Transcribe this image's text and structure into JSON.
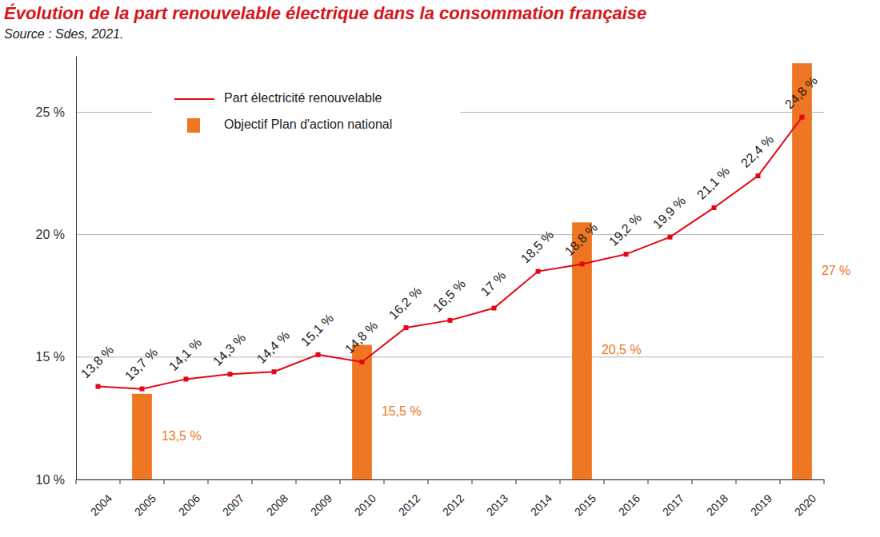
{
  "chart_data": {
    "type": "bar",
    "title": "Évolution de la part renouvelable électrique dans la consommation française",
    "subtitle": "Source : Sdes, 2021.",
    "categories": [
      "2004",
      "2005",
      "2006",
      "2007",
      "2008",
      "2009",
      "2010",
      "2012",
      "2012",
      "2013",
      "2014",
      "2015",
      "2016",
      "2017",
      "2018",
      "2019",
      "2020"
    ],
    "series": [
      {
        "name": "Part électricité renouvelable",
        "type": "line",
        "color": "#e30613",
        "marker": "square",
        "line_style": "solid",
        "values": [
          13.8,
          13.7,
          14.1,
          14.3,
          14.4,
          15.1,
          14.8,
          16.2,
          16.5,
          17,
          18.5,
          18.8,
          19.2,
          19.9,
          21.1,
          22.4,
          24.8
        ],
        "value_labels": [
          "13,8 %",
          "13,7 %",
          "14,1 %",
          "14,3 %",
          "14,4 %",
          "15,1 %",
          "14,8 %",
          "16,2 %",
          "16,5 %",
          "17 %",
          "18,5 %",
          "18,8 %",
          "19,2 %",
          "19,9 %",
          "21,1 %",
          "22,4 %",
          "24,8 %"
        ]
      },
      {
        "name": "Objectif Plan d'action national",
        "type": "bar",
        "color": "#ee7623",
        "values": [
          null,
          13.5,
          null,
          null,
          null,
          null,
          15.5,
          null,
          null,
          null,
          null,
          20.5,
          null,
          null,
          null,
          null,
          27
        ],
        "value_labels": [
          null,
          "13,5 %",
          null,
          null,
          null,
          null,
          "15,5 %",
          null,
          null,
          null,
          null,
          "20,5 %",
          null,
          null,
          null,
          null,
          "27 %"
        ]
      }
    ],
    "ylim": [
      10,
      27.3
    ],
    "yticks": [
      {
        "value": 10,
        "label": "10 %"
      },
      {
        "value": 15,
        "label": "15 %"
      },
      {
        "value": 20,
        "label": "20 %"
      },
      {
        "value": 25,
        "label": "25 %"
      }
    ],
    "grid": true,
    "legend": "upper left",
    "data_labels": true
  }
}
